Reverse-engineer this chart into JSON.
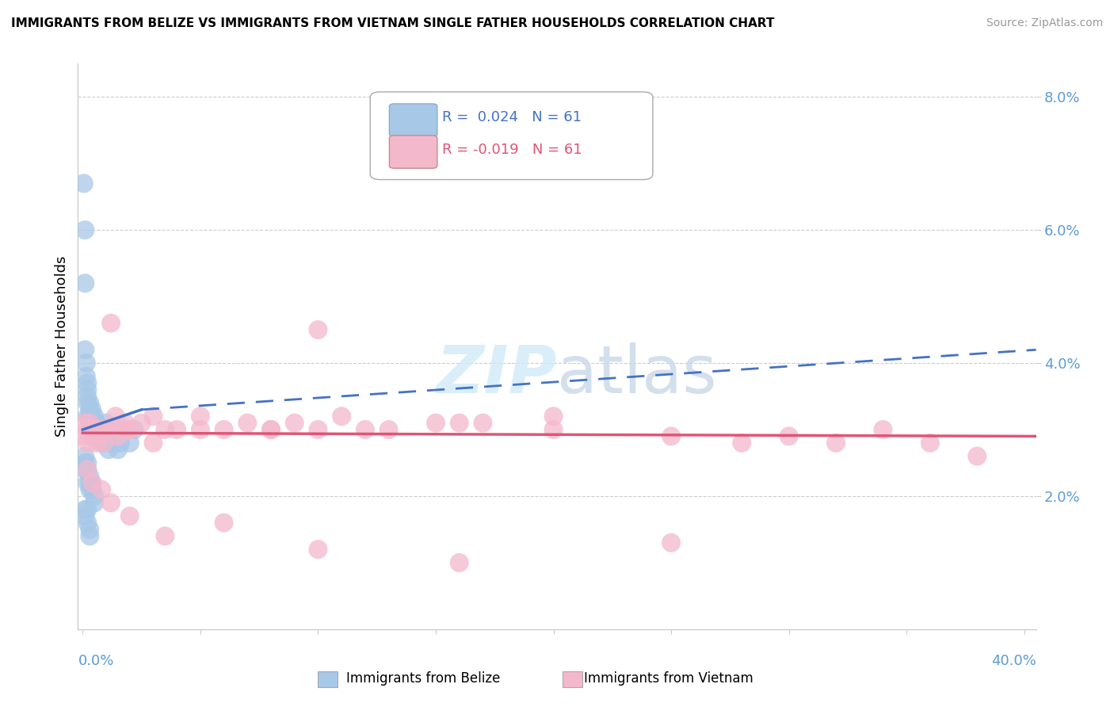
{
  "title": "IMMIGRANTS FROM BELIZE VS IMMIGRANTS FROM VIETNAM SINGLE FATHER HOUSEHOLDS CORRELATION CHART",
  "source": "Source: ZipAtlas.com",
  "ylabel": "Single Father Households",
  "ylim": [
    0.0,
    0.085
  ],
  "xlim": [
    -0.002,
    0.405
  ],
  "ytick_vals": [
    0.02,
    0.04,
    0.06,
    0.08
  ],
  "ytick_labels": [
    "2.0%",
    "4.0%",
    "6.0%",
    "8.0%"
  ],
  "belize_R": 0.024,
  "belize_N": 61,
  "vietnam_R": -0.019,
  "vietnam_N": 61,
  "belize_color": "#a8c8e8",
  "belize_line_color": "#4472c4",
  "vietnam_color": "#f4b8cc",
  "vietnam_line_color": "#e05575",
  "watermark_zip": "ZIP",
  "watermark_atlas": "atlas",
  "belize_x": [
    0.0005,
    0.001,
    0.001,
    0.001,
    0.0015,
    0.0015,
    0.002,
    0.002,
    0.002,
    0.002,
    0.002,
    0.003,
    0.003,
    0.003,
    0.003,
    0.004,
    0.004,
    0.004,
    0.005,
    0.005,
    0.005,
    0.005,
    0.006,
    0.006,
    0.006,
    0.007,
    0.007,
    0.008,
    0.008,
    0.009,
    0.009,
    0.01,
    0.01,
    0.011,
    0.012,
    0.013,
    0.014,
    0.015,
    0.016,
    0.018,
    0.02,
    0.022,
    0.001,
    0.001,
    0.001,
    0.002,
    0.002,
    0.002,
    0.003,
    0.003,
    0.003,
    0.004,
    0.004,
    0.005,
    0.005,
    0.001,
    0.001,
    0.002,
    0.002,
    0.003,
    0.003
  ],
  "belize_y": [
    0.067,
    0.06,
    0.052,
    0.042,
    0.04,
    0.038,
    0.037,
    0.036,
    0.035,
    0.034,
    0.032,
    0.034,
    0.033,
    0.032,
    0.03,
    0.033,
    0.032,
    0.031,
    0.032,
    0.031,
    0.03,
    0.029,
    0.031,
    0.03,
    0.029,
    0.03,
    0.029,
    0.029,
    0.028,
    0.03,
    0.029,
    0.028,
    0.031,
    0.027,
    0.028,
    0.029,
    0.028,
    0.027,
    0.028,
    0.03,
    0.028,
    0.03,
    0.026,
    0.025,
    0.024,
    0.025,
    0.024,
    0.022,
    0.023,
    0.022,
    0.021,
    0.022,
    0.021,
    0.02,
    0.019,
    0.018,
    0.017,
    0.018,
    0.016,
    0.015,
    0.014
  ],
  "vietnam_x": [
    0.001,
    0.002,
    0.003,
    0.004,
    0.005,
    0.006,
    0.007,
    0.008,
    0.009,
    0.01,
    0.012,
    0.014,
    0.016,
    0.018,
    0.02,
    0.025,
    0.03,
    0.035,
    0.04,
    0.05,
    0.06,
    0.07,
    0.08,
    0.09,
    0.1,
    0.11,
    0.13,
    0.15,
    0.17,
    0.2,
    0.001,
    0.002,
    0.004,
    0.006,
    0.01,
    0.015,
    0.02,
    0.03,
    0.05,
    0.08,
    0.12,
    0.16,
    0.2,
    0.25,
    0.28,
    0.3,
    0.32,
    0.34,
    0.36,
    0.38,
    0.002,
    0.004,
    0.008,
    0.012,
    0.02,
    0.035,
    0.06,
    0.1,
    0.16,
    0.25,
    0.1
  ],
  "vietnam_y": [
    0.031,
    0.03,
    0.031,
    0.029,
    0.03,
    0.03,
    0.029,
    0.03,
    0.028,
    0.03,
    0.046,
    0.032,
    0.03,
    0.031,
    0.03,
    0.031,
    0.032,
    0.03,
    0.03,
    0.032,
    0.03,
    0.031,
    0.03,
    0.031,
    0.03,
    0.032,
    0.03,
    0.031,
    0.031,
    0.032,
    0.029,
    0.028,
    0.029,
    0.028,
    0.03,
    0.029,
    0.03,
    0.028,
    0.03,
    0.03,
    0.03,
    0.031,
    0.03,
    0.029,
    0.028,
    0.029,
    0.028,
    0.03,
    0.028,
    0.026,
    0.024,
    0.022,
    0.021,
    0.019,
    0.017,
    0.014,
    0.016,
    0.012,
    0.01,
    0.013,
    0.045
  ]
}
